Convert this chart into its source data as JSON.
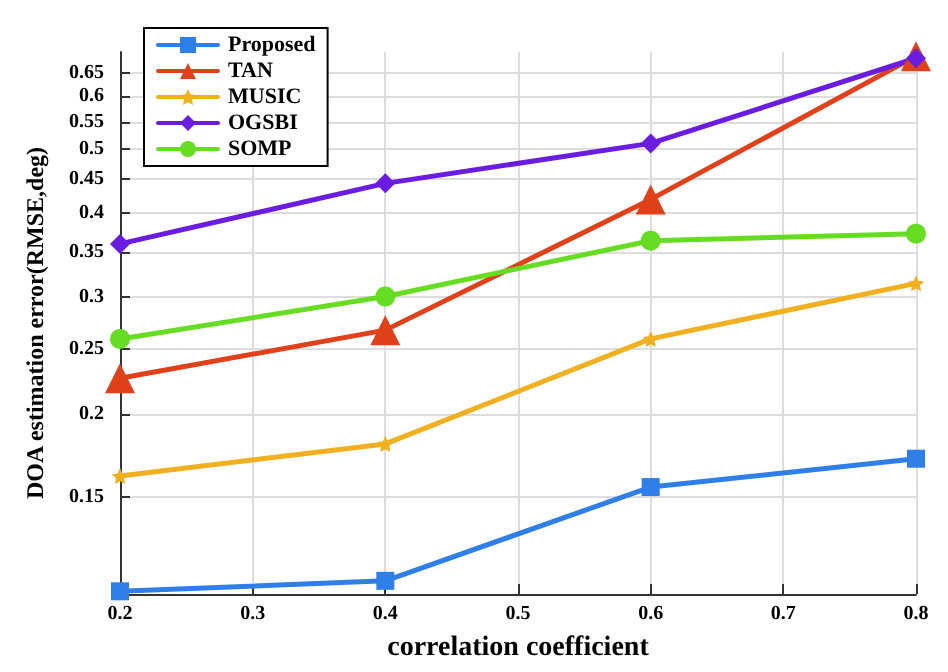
{
  "chart_data": {
    "type": "line",
    "xlabel": "correlation coefficient",
    "ylabel": "DOA estimation error(RMSE,deg)",
    "x": [
      0.2,
      0.4,
      0.6,
      0.8
    ],
    "series": [
      {
        "name": "Proposed",
        "color": "#2f7fe8",
        "marker": "square",
        "values": [
          0.108,
          0.112,
          0.155,
          0.171
        ]
      },
      {
        "name": "TAN",
        "color": "#e0401a",
        "marker": "triangle",
        "values": [
          0.226,
          0.267,
          0.42,
          0.69
        ]
      },
      {
        "name": "MUSIC",
        "color": "#f0b020",
        "marker": "star",
        "values": [
          0.161,
          0.18,
          0.259,
          0.314
        ]
      },
      {
        "name": "OGSBI",
        "color": "#6a1de0",
        "marker": "diamond",
        "values": [
          0.36,
          0.444,
          0.51,
          0.685
        ]
      },
      {
        "name": "SOMP",
        "color": "#66dd22",
        "marker": "circle",
        "values": [
          0.259,
          0.3,
          0.364,
          0.373
        ]
      }
    ],
    "xlim": [
      0.2,
      0.8
    ],
    "xticks": [
      0.2,
      0.3,
      0.4,
      0.5,
      0.6,
      0.7,
      0.8
    ],
    "ylim": [
      0.107,
      0.7
    ],
    "yticks": [
      0.15,
      0.2,
      0.25,
      0.3,
      0.35,
      0.4,
      0.45,
      0.5,
      0.55,
      0.6,
      0.65
    ],
    "log": "y",
    "grid": true,
    "legend": "top left",
    "line_style": "solid"
  }
}
